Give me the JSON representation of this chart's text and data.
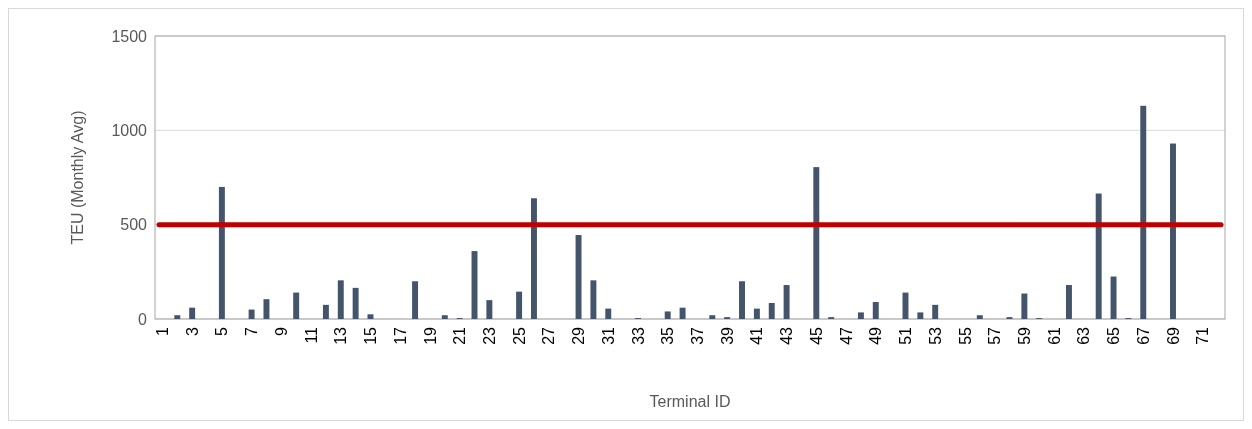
{
  "chart_data": {
    "type": "bar",
    "xlabel": "Terminal ID",
    "ylabel": "TEU (Monthly Avg)",
    "categories": [
      "1",
      null,
      "3",
      null,
      "5",
      null,
      "7",
      null,
      "9",
      null,
      "11",
      null,
      "13",
      null,
      "15",
      null,
      "17",
      null,
      "19",
      null,
      "21",
      null,
      "23",
      null,
      "25",
      null,
      "27",
      null,
      "29",
      null,
      "31",
      null,
      "33",
      null,
      "35",
      null,
      "37",
      null,
      "39",
      null,
      "41",
      null,
      "43",
      null,
      "45",
      null,
      "47",
      null,
      "49",
      null,
      "51",
      null,
      "53",
      null,
      "55",
      null,
      "57",
      null,
      "59",
      null,
      "61",
      null,
      "63",
      null,
      "65",
      null,
      "67",
      null,
      "69",
      null,
      "71",
      null
    ],
    "series": [
      {
        "color": "#44546a",
        "values": [
          0,
          20,
          60,
          0,
          700,
          0,
          50,
          105,
          0,
          140,
          0,
          75,
          205,
          165,
          25,
          0,
          0,
          200,
          0,
          20,
          5,
          360,
          100,
          0,
          145,
          640,
          0,
          0,
          445,
          205,
          55,
          0,
          5,
          0,
          40,
          60,
          0,
          20,
          10,
          200,
          55,
          85,
          180,
          0,
          805,
          10,
          0,
          35,
          90,
          0,
          140,
          35,
          75,
          0,
          0,
          20,
          0,
          10,
          135,
          5,
          0,
          180,
          0,
          665,
          225,
          5,
          1130,
          0,
          930,
          0,
          0,
          0
        ]
      }
    ],
    "ylim": [
      0,
      1500
    ],
    "yticks": [
      0,
      500,
      1000,
      1500
    ],
    "grid": "y",
    "ref_lines": [
      {
        "axis": "y",
        "value": 500,
        "color": "#c00000"
      }
    ]
  }
}
